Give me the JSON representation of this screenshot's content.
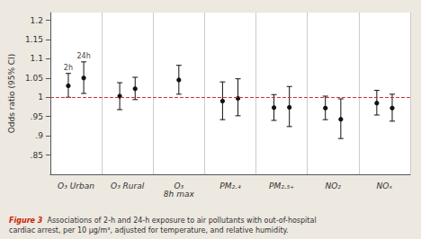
{
  "chart_data": {
    "type": "errorbar",
    "ylabel": "Odds ratio (95% CI)",
    "categories": [
      "O₃ Urban",
      "O₃ Rural",
      "O₃\n8h max",
      "PM₂.₄",
      "PM₂.₅₊",
      "NO₂",
      "NOₓ"
    ],
    "series": [
      {
        "color": "#111111",
        "marker": "circle",
        "values": [
          1.03,
          1.003,
          1.045,
          0.99,
          0.973,
          0.972,
          0.985
        ],
        "lo": [
          1.0,
          0.968,
          1.008,
          0.942,
          0.94,
          0.942,
          0.954
        ],
        "hi": [
          1.062,
          1.038,
          1.083,
          1.04,
          1.007,
          1.003,
          1.018
        ]
      },
      {
        "color": "#111111",
        "marker": "circle",
        "values": [
          1.05,
          1.022,
          null,
          0.997,
          0.974,
          0.943,
          0.972
        ],
        "lo": [
          1.01,
          0.994,
          null,
          0.952,
          0.924,
          0.893,
          0.938
        ],
        "hi": [
          1.092,
          1.052,
          null,
          1.048,
          1.028,
          0.996,
          1.008
        ]
      }
    ],
    "annotations": [
      {
        "text": "2h",
        "category": "O₃ Urban",
        "series": 0
      },
      {
        "text": "24h",
        "category": "O₃ Urban",
        "series": 1
      }
    ],
    "reference_line": {
      "y": 1.0,
      "color": "#cc3333",
      "line_style": "dashed"
    },
    "ylim": [
      0.8,
      1.22
    ],
    "yticks": [
      {
        "value": 0.85,
        "label": ".85"
      },
      {
        "value": 0.9,
        "label": ".9"
      },
      {
        "value": 0.95,
        "label": ".95"
      },
      1,
      1.05,
      1.1,
      1.15,
      1.2
    ],
    "grid": "x",
    "caption": {
      "label": "Figure 3",
      "color": "#cc2200",
      "text": "Associations of 2-h and 24-h exposure to air pollutants with out-of-hospital cardiac arrest, per 10 μg/m³, adjusted for temperature, and relative humidity."
    }
  }
}
